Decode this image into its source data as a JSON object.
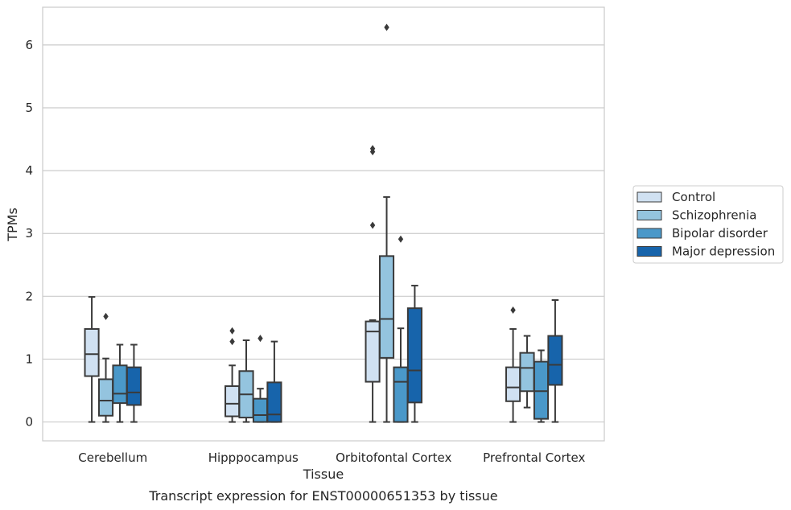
{
  "chart_data": {
    "type": "box",
    "xlabel": "Tissue",
    "ylabel": "TPMs",
    "caption": "Transcript expression for ENST00000651353 by tissue",
    "ylim": [
      -0.3,
      6.6
    ],
    "yticks": [
      0,
      1,
      2,
      3,
      4,
      5,
      6
    ],
    "grid": "horizontal",
    "legend_position": "right",
    "categories": [
      "Cerebellum",
      "Hipppocampus",
      "Orbitofontal Cortex",
      "Prefrontal Cortex"
    ],
    "series": [
      {
        "name": "Control",
        "color": "#d0e1f2",
        "boxes": [
          {
            "whislo": 0,
            "q1": 0.73,
            "med": 1.08,
            "q3": 1.48,
            "whishi": 1.99,
            "fliers": []
          },
          {
            "whislo": 0,
            "q1": 0.09,
            "med": 0.29,
            "q3": 0.57,
            "whishi": 0.9,
            "fliers": [
              1.28,
              1.45
            ]
          },
          {
            "whislo": 0,
            "q1": 0.64,
            "med": 1.44,
            "q3": 1.6,
            "whishi": 1.62,
            "fliers": [
              3.13,
              4.3,
              4.35
            ]
          },
          {
            "whislo": 0,
            "q1": 0.33,
            "med": 0.55,
            "q3": 0.87,
            "whishi": 1.48,
            "fliers": [
              1.78
            ]
          }
        ]
      },
      {
        "name": "Schizophrenia",
        "color": "#94c4df",
        "boxes": [
          {
            "whislo": 0,
            "q1": 0.1,
            "med": 0.34,
            "q3": 0.68,
            "whishi": 1.01,
            "fliers": [
              1.68
            ]
          },
          {
            "whislo": 0,
            "q1": 0.07,
            "med": 0.44,
            "q3": 0.81,
            "whishi": 1.3,
            "fliers": []
          },
          {
            "whislo": 0,
            "q1": 1.02,
            "med": 1.64,
            "q3": 2.64,
            "whishi": 3.58,
            "fliers": [
              6.28
            ]
          },
          {
            "whislo": 0.23,
            "q1": 0.49,
            "med": 0.86,
            "q3": 1.1,
            "whishi": 1.37,
            "fliers": []
          }
        ]
      },
      {
        "name": "Bipolar disorder",
        "color": "#4a98c9",
        "boxes": [
          {
            "whislo": 0,
            "q1": 0.3,
            "med": 0.45,
            "q3": 0.9,
            "whishi": 1.23,
            "fliers": []
          },
          {
            "whislo": 0,
            "q1": 0,
            "med": 0.11,
            "q3": 0.37,
            "whishi": 0.53,
            "fliers": [
              1.33
            ]
          },
          {
            "whislo": 0,
            "q1": 0,
            "med": 0.64,
            "q3": 0.87,
            "whishi": 1.49,
            "fliers": [
              2.91
            ]
          },
          {
            "whislo": 0,
            "q1": 0.05,
            "med": 0.49,
            "q3": 0.96,
            "whishi": 1.14,
            "fliers": []
          }
        ]
      },
      {
        "name": "Major depression",
        "color": "#1764ab",
        "boxes": [
          {
            "whislo": 0,
            "q1": 0.27,
            "med": 0.47,
            "q3": 0.87,
            "whishi": 1.23,
            "fliers": []
          },
          {
            "whislo": 0,
            "q1": 0,
            "med": 0.12,
            "q3": 0.63,
            "whishi": 1.28,
            "fliers": []
          },
          {
            "whislo": 0,
            "q1": 0.31,
            "med": 0.82,
            "q3": 1.81,
            "whishi": 2.17,
            "fliers": []
          },
          {
            "whislo": 0,
            "q1": 0.59,
            "med": 0.91,
            "q3": 1.37,
            "whishi": 1.94,
            "fliers": []
          }
        ]
      }
    ]
  }
}
